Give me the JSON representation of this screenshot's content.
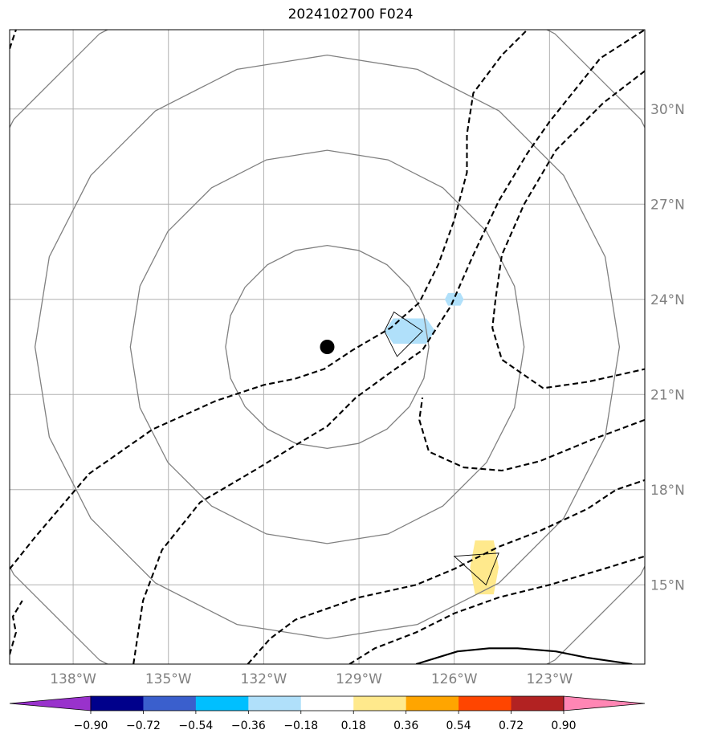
{
  "chart_data": {
    "type": "contour_map",
    "title": "2024102700 F024",
    "projection": "lon-lat map",
    "xlim": [
      -140,
      -120
    ],
    "ylim": [
      12.5,
      32.5
    ],
    "x_ticks": [
      -138,
      -135,
      -132,
      -129,
      -126,
      -123
    ],
    "x_tick_labels": [
      "138°W",
      "135°W",
      "132°W",
      "129°W",
      "126°W",
      "123°W"
    ],
    "y_ticks": [
      15,
      18,
      21,
      24,
      27,
      30
    ],
    "y_tick_labels": [
      "15°N",
      "18°N",
      "21°N",
      "24°N",
      "27°N",
      "30°N"
    ],
    "grid": true,
    "center_marker": {
      "lon": -130.0,
      "lat": 22.5
    },
    "range_rings_deg": [
      3.2,
      6.2,
      9.2,
      12.2
    ],
    "shaded_regions": [
      {
        "value_bin": "-0.36 to -0.18",
        "color": "#B0E0FA",
        "lon": [
          -128.2,
          -126.6
        ],
        "lat": [
          22.6,
          23.4
        ]
      },
      {
        "value_bin": "-0.36 to -0.18",
        "color": "#B0E0FA",
        "lon": [
          -126.3,
          -125.7
        ],
        "lat": [
          23.8,
          24.2
        ]
      },
      {
        "value_bin": "0.18 to 0.36",
        "color": "#FFE98C",
        "lon": [
          -125.5,
          -124.6
        ],
        "lat": [
          14.7,
          16.4
        ]
      }
    ],
    "polygons": [
      {
        "points": [
          [
            -128.2,
            23.0
          ],
          [
            -127.9,
            23.6
          ],
          [
            -127.0,
            23.0
          ],
          [
            -127.8,
            22.2
          ]
        ]
      },
      {
        "points": [
          [
            -126.0,
            15.9
          ],
          [
            -124.6,
            16.0
          ],
          [
            -125.0,
            15.0
          ]
        ]
      }
    ],
    "dashed_contours": [
      [
        [
          -140,
          15.5
        ],
        [
          -139.2,
          16.5
        ],
        [
          -137.5,
          18.5
        ],
        [
          -135.5,
          19.9
        ],
        [
          -133.5,
          20.8
        ],
        [
          -132.0,
          21.3
        ],
        [
          -131.0,
          21.5
        ],
        [
          -130.1,
          21.8
        ],
        [
          -129.2,
          22.4
        ],
        [
          -128.0,
          23.1
        ],
        [
          -127.1,
          23.9
        ],
        [
          -126.5,
          25.1
        ],
        [
          -126.0,
          26.5
        ],
        [
          -125.6,
          28.0
        ],
        [
          -125.6,
          29.2
        ],
        [
          -125.4,
          30.5
        ],
        [
          -124.5,
          31.7
        ],
        [
          -123.7,
          32.5
        ]
      ],
      [
        [
          -140,
          12.8
        ],
        [
          -139.8,
          13.5
        ],
        [
          -139.9,
          14.0
        ],
        [
          -139.6,
          14.5
        ]
      ],
      [
        [
          -136.1,
          12.5
        ],
        [
          -135.8,
          14.5
        ],
        [
          -135.2,
          16.1
        ],
        [
          -134.0,
          17.6
        ],
        [
          -132.3,
          18.6
        ],
        [
          -131.0,
          19.4
        ],
        [
          -130.0,
          20.0
        ],
        [
          -129.1,
          20.9
        ],
        [
          -128.0,
          21.7
        ],
        [
          -127.0,
          22.4
        ],
        [
          -126.1,
          23.8
        ],
        [
          -125.4,
          25.4
        ],
        [
          -124.6,
          27.1
        ],
        [
          -123.7,
          28.6
        ],
        [
          -123.0,
          29.6
        ],
        [
          -121.4,
          31.6
        ],
        [
          -120,
          32.5
        ]
      ],
      [
        [
          -140,
          31.9
        ],
        [
          -139.8,
          32.5
        ]
      ],
      [
        [
          -132.5,
          12.5
        ],
        [
          -131.8,
          13.3
        ],
        [
          -131.0,
          13.9
        ],
        [
          -129.0,
          14.6
        ],
        [
          -127.2,
          15.0
        ],
        [
          -126.0,
          15.5
        ],
        [
          -124.6,
          16.2
        ],
        [
          -123.3,
          16.7
        ],
        [
          -121.8,
          17.4
        ],
        [
          -120.9,
          18.0
        ],
        [
          -120,
          18.3
        ]
      ],
      [
        [
          -129.3,
          12.5
        ],
        [
          -128.5,
          13.0
        ],
        [
          -127.2,
          13.5
        ],
        [
          -126.0,
          14.1
        ],
        [
          -124.6,
          14.6
        ],
        [
          -123.0,
          15.0
        ],
        [
          -121.3,
          15.5
        ],
        [
          -120,
          15.9
        ]
      ],
      [
        [
          -120,
          31.2
        ],
        [
          -121.3,
          30.2
        ],
        [
          -122.8,
          28.7
        ],
        [
          -123.8,
          27.0
        ],
        [
          -124.5,
          25.4
        ],
        [
          -124.7,
          24.0
        ],
        [
          -124.8,
          23.1
        ],
        [
          -124.5,
          22.1
        ],
        [
          -123.2,
          21.2
        ],
        [
          -121.8,
          21.4
        ],
        [
          -120,
          21.8
        ]
      ],
      [
        [
          -120,
          20.2
        ],
        [
          -121.6,
          19.6
        ],
        [
          -123.3,
          18.9
        ],
        [
          -124.5,
          18.6
        ],
        [
          -125.7,
          18.7
        ],
        [
          -126.8,
          19.2
        ],
        [
          -127.1,
          20.2
        ],
        [
          -127.0,
          20.9
        ]
      ]
    ],
    "solid_contours": [
      [
        [
          -127.2,
          12.5
        ],
        [
          -125.9,
          12.9
        ],
        [
          -124.9,
          13.0
        ],
        [
          -124.0,
          13.0
        ],
        [
          -122.8,
          12.9
        ],
        [
          -121.8,
          12.7
        ],
        [
          -120.4,
          12.5
        ]
      ]
    ],
    "colorbar": {
      "orientation": "horizontal",
      "extend": "both",
      "colors": [
        "#9932CC",
        "#00008B",
        "#3A5FCD",
        "#00BFFF",
        "#B0E0FA",
        "#FFFFFF",
        "#FFE98C",
        "#FFA500",
        "#FF4500",
        "#B22222",
        "#FF86B4"
      ],
      "boundaries": [
        -0.9,
        -0.72,
        -0.54,
        -0.36,
        -0.18,
        0.18,
        0.36,
        0.54,
        0.72,
        0.9
      ],
      "tick_labels": [
        "−0.90",
        "−0.72",
        "−0.54",
        "−0.36",
        "−0.18",
        "0.18",
        "0.36",
        "0.54",
        "0.72",
        "0.90"
      ]
    }
  }
}
